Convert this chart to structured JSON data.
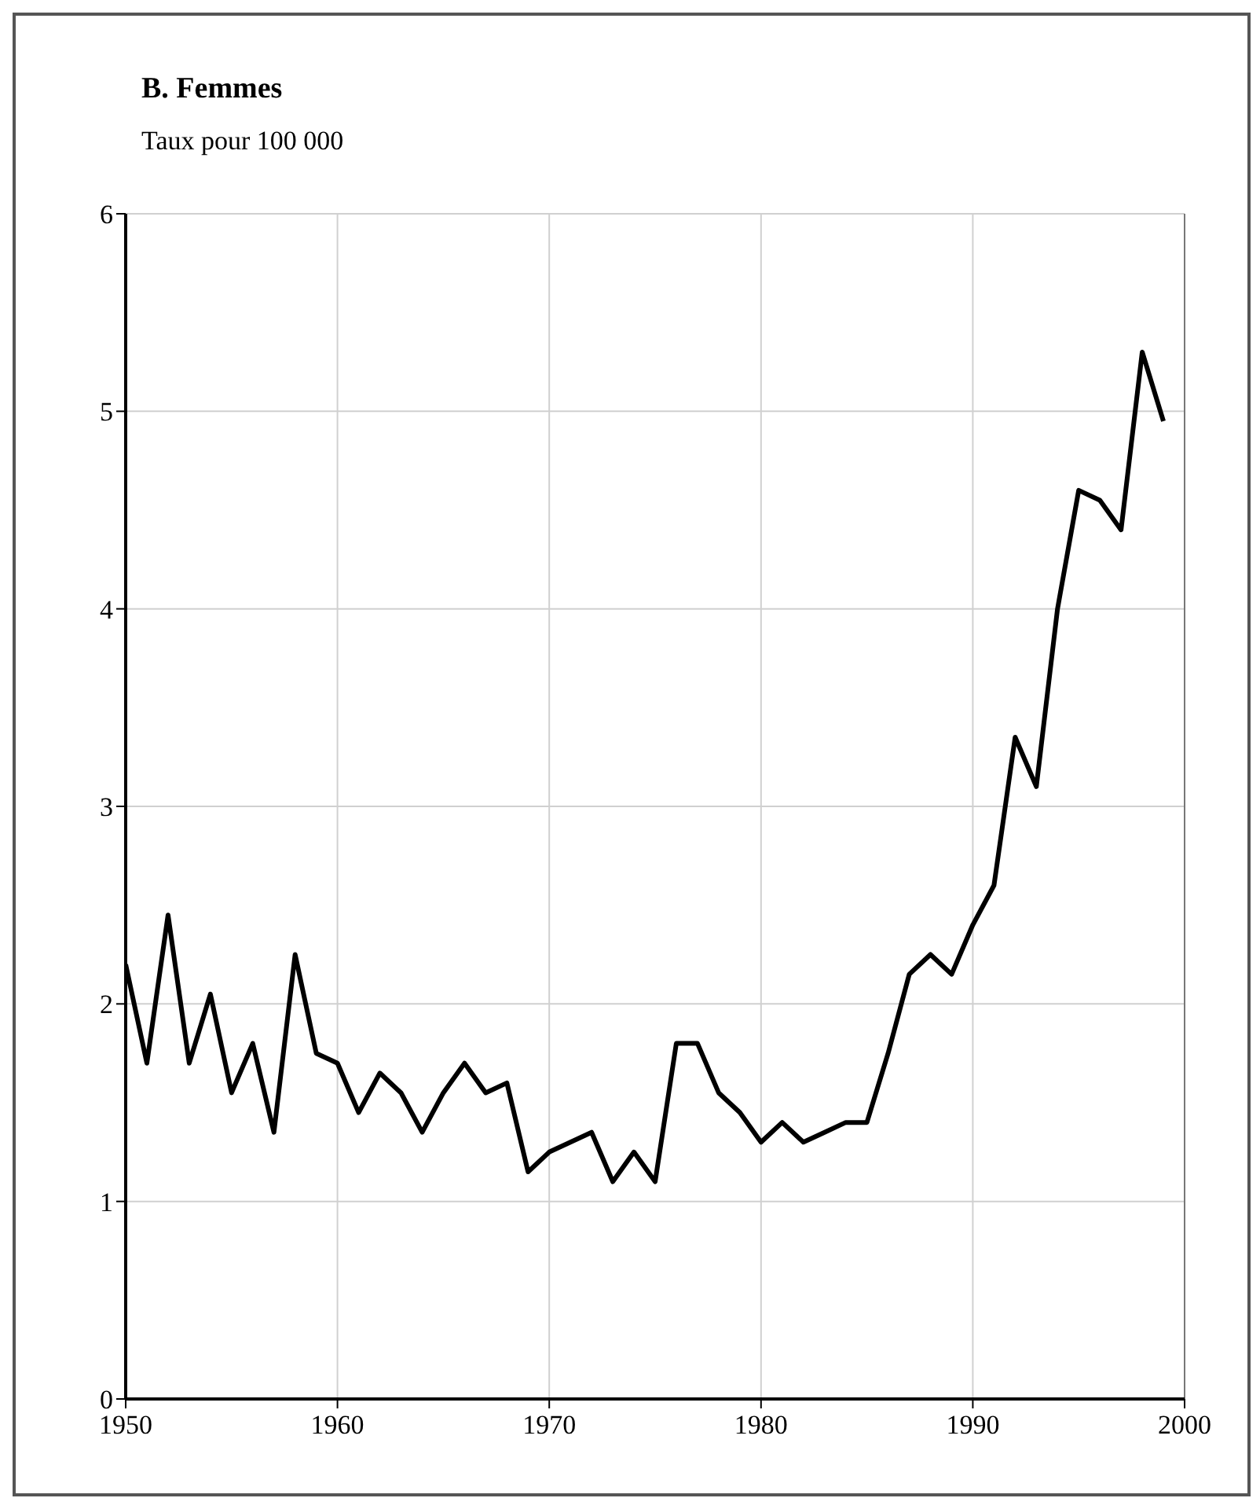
{
  "chart_data": {
    "type": "line",
    "title": "B. Femmes",
    "subtitle": "Taux pour 100 000",
    "x": [
      1950,
      1951,
      1952,
      1953,
      1954,
      1955,
      1956,
      1957,
      1958,
      1959,
      1960,
      1961,
      1962,
      1963,
      1964,
      1965,
      1966,
      1967,
      1968,
      1969,
      1970,
      1971,
      1972,
      1973,
      1974,
      1975,
      1976,
      1977,
      1978,
      1979,
      1980,
      1981,
      1982,
      1983,
      1984,
      1985,
      1986,
      1987,
      1988,
      1989,
      1990,
      1991,
      1992,
      1993,
      1994,
      1995,
      1996,
      1997,
      1998,
      1999
    ],
    "series": [
      {
        "color": "#000000",
        "values": [
          2.2,
          1.7,
          2.45,
          1.7,
          2.05,
          1.55,
          1.8,
          1.35,
          2.25,
          1.75,
          1.7,
          1.45,
          1.65,
          1.55,
          1.35,
          1.55,
          1.7,
          1.55,
          1.6,
          1.15,
          1.25,
          1.3,
          1.35,
          1.1,
          1.25,
          1.1,
          1.8,
          1.8,
          1.55,
          1.45,
          1.3,
          1.4,
          1.3,
          1.35,
          1.4,
          1.4,
          1.75,
          2.15,
          2.25,
          2.15,
          2.4,
          2.6,
          3.35,
          3.1,
          4.0,
          4.6,
          4.55,
          4.4,
          5.3,
          4.95
        ]
      }
    ],
    "xlim": [
      1950,
      2000
    ],
    "xticks": [
      1950,
      1960,
      1970,
      1980,
      1990,
      2000
    ],
    "ylim": [
      0,
      6
    ],
    "yticks": [
      0,
      1,
      2,
      3,
      4,
      5,
      6
    ],
    "grid": true,
    "marker": "none",
    "line_style": "solid"
  }
}
